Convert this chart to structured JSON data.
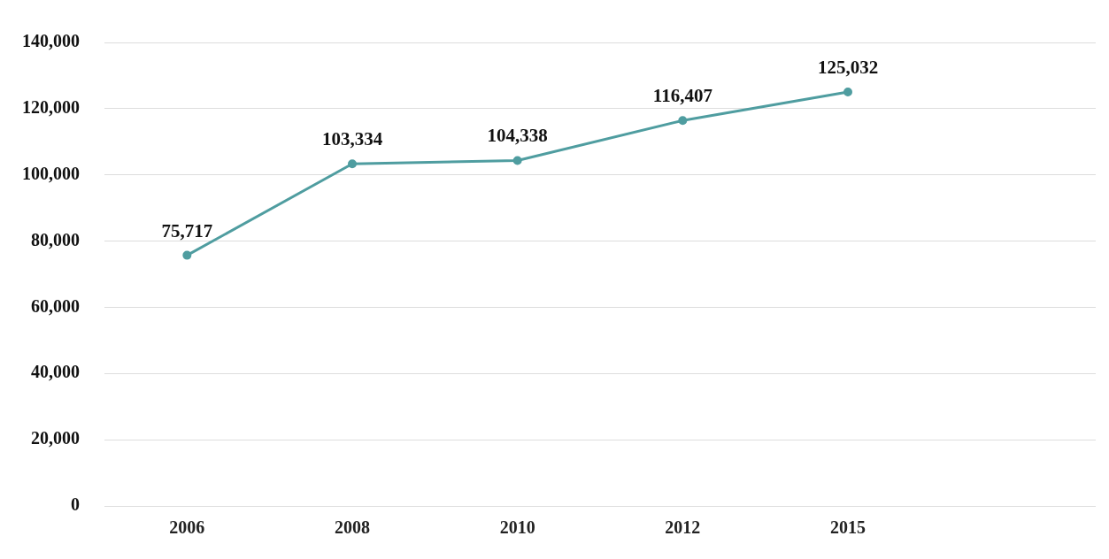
{
  "chart_data": {
    "type": "line",
    "categories": [
      "2006",
      "2008",
      "2010",
      "2012",
      "2015"
    ],
    "values": [
      75717,
      103334,
      104338,
      116407,
      125032
    ],
    "value_labels": [
      "75,717",
      "103,334",
      "104,338",
      "116,407",
      "125,032"
    ],
    "color": "#4f9da0",
    "marker": "circle",
    "grid": "y",
    "legend": false,
    "ylim": [
      0,
      140000
    ],
    "yticks": [
      {
        "value": 0,
        "label": "0"
      },
      {
        "value": 20000,
        "label": "20,000"
      },
      {
        "value": 40000,
        "label": "40,000"
      },
      {
        "value": 60000,
        "label": "60,000"
      },
      {
        "value": 80000,
        "label": "80,000"
      },
      {
        "value": 100000,
        "label": "100,000"
      },
      {
        "value": 120000,
        "label": "120,000"
      },
      {
        "value": 140000,
        "label": "140,000"
      }
    ]
  }
}
